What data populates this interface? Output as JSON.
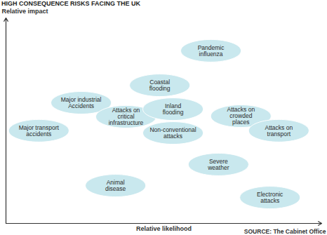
{
  "chart_data": {
    "type": "scatter",
    "title": "HIGH CONSEQUENCE RISKS FACING THE UK",
    "x_label": "Relative likelihood",
    "y_label": "Relative impact",
    "source": "SOURCE: The Cabinet Office",
    "categories": [
      "Major transport\naccidents",
      "Major industrial\nAccidents",
      "Animal\ndisease",
      "Coastal\nflooding",
      "Attacks on\ncritical\ninfrastructure",
      "Inland\nflooding",
      "Non-conventional\nattacks",
      "Pandemic\ninfluenza",
      "Severe\nweather",
      "Attacks on\ncrowded\nplaces",
      "Attacks on\ntransport",
      "Electronic\nattacks"
    ],
    "x": [
      10.4,
      23.8,
      34.7,
      48.7,
      38.0,
      52.9,
      52.9,
      64.9,
      67.3,
      74.4,
      86.4,
      83.6
    ],
    "values": [
      45.1,
      58.7,
      18.4,
      67.2,
      51.9,
      55.6,
      44.0,
      84.0,
      28.7,
      52.2,
      45.1,
      12.6
    ],
    "xlim": [
      0,
      100
    ],
    "ylim": [
      0,
      100
    ],
    "tick_labels": false,
    "color": "#c9e8ee",
    "marker": "ellipse"
  }
}
